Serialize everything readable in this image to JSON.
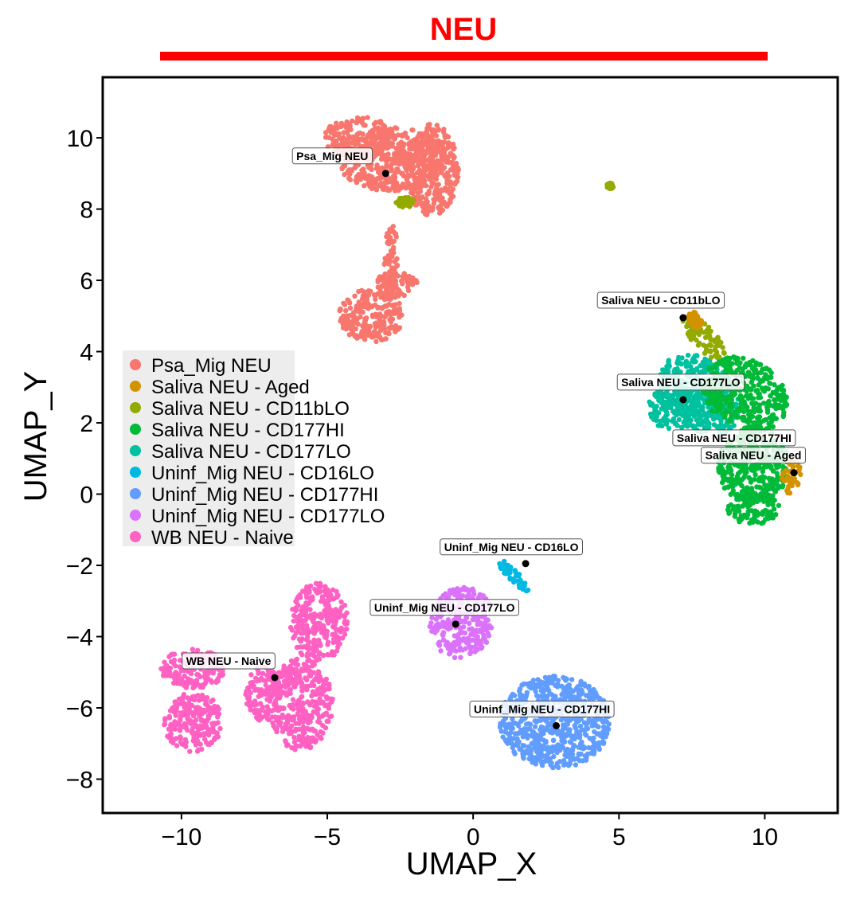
{
  "chart_data": {
    "type": "scatter",
    "title": "NEU",
    "title_color": "#ff0000",
    "xlabel": "UMAP_X",
    "ylabel": "UMAP_Y",
    "xlim": [
      -12.7,
      12.5
    ],
    "ylim": [
      -8.95,
      11.7
    ],
    "x_ticks": [
      -10,
      -5,
      0,
      5,
      10
    ],
    "y_ticks": [
      -8,
      -6,
      -4,
      -2,
      0,
      2,
      4,
      6,
      8,
      10
    ],
    "x_tick_labels": [
      "−10",
      "−5",
      "0",
      "5",
      "10"
    ],
    "y_tick_labels": [
      "−8",
      "−6",
      "−4",
      "−2",
      "0",
      "2",
      "4",
      "6",
      "8",
      "10"
    ],
    "grid": false,
    "legend_position": "left",
    "series": [
      {
        "name": "Psa_Mig NEU",
        "color": "#f8766d"
      },
      {
        "name": "Saliva NEU - Aged",
        "color": "#d39200"
      },
      {
        "name": "Saliva NEU - CD11bLO",
        "color": "#93aa00"
      },
      {
        "name": "Saliva NEU - CD177HI",
        "color": "#00ba38"
      },
      {
        "name": "Saliva NEU - CD177LO",
        "color": "#00c19f"
      },
      {
        "name": "Uninf_Mig NEU - CD16LO",
        "color": "#00b9e3"
      },
      {
        "name": "Uninf_Mig NEU - CD177HI",
        "color": "#619cff"
      },
      {
        "name": "Uninf_Mig NEU - CD177LO",
        "color": "#db72fb"
      },
      {
        "name": "WB NEU - Naive",
        "color": "#ff61c3"
      }
    ],
    "cluster_labels": [
      {
        "label": "Psa_Mig NEU",
        "x": -3.0,
        "y": 9.0
      },
      {
        "label": "Saliva NEU - CD11bLO",
        "x": 7.2,
        "y": 4.95
      },
      {
        "label": "Saliva NEU - CD177LO",
        "x": 7.2,
        "y": 2.65
      },
      {
        "label": "Saliva NEU - CD177HI",
        "x": 7.2,
        "y": 2.65
      },
      {
        "label": "Saliva NEU - Aged",
        "x": 11.0,
        "y": 0.6
      },
      {
        "label": "Uninf_Mig NEU - CD16LO",
        "x": 1.8,
        "y": -1.95
      },
      {
        "label": "Uninf_Mig NEU - CD177LO",
        "x": -0.6,
        "y": -3.65
      },
      {
        "label": "WB NEU - Naive",
        "x": -6.8,
        "y": -5.15
      },
      {
        "label": "Uninf_Mig NEU - CD177HI",
        "x": 2.85,
        "y": -6.5
      }
    ]
  }
}
